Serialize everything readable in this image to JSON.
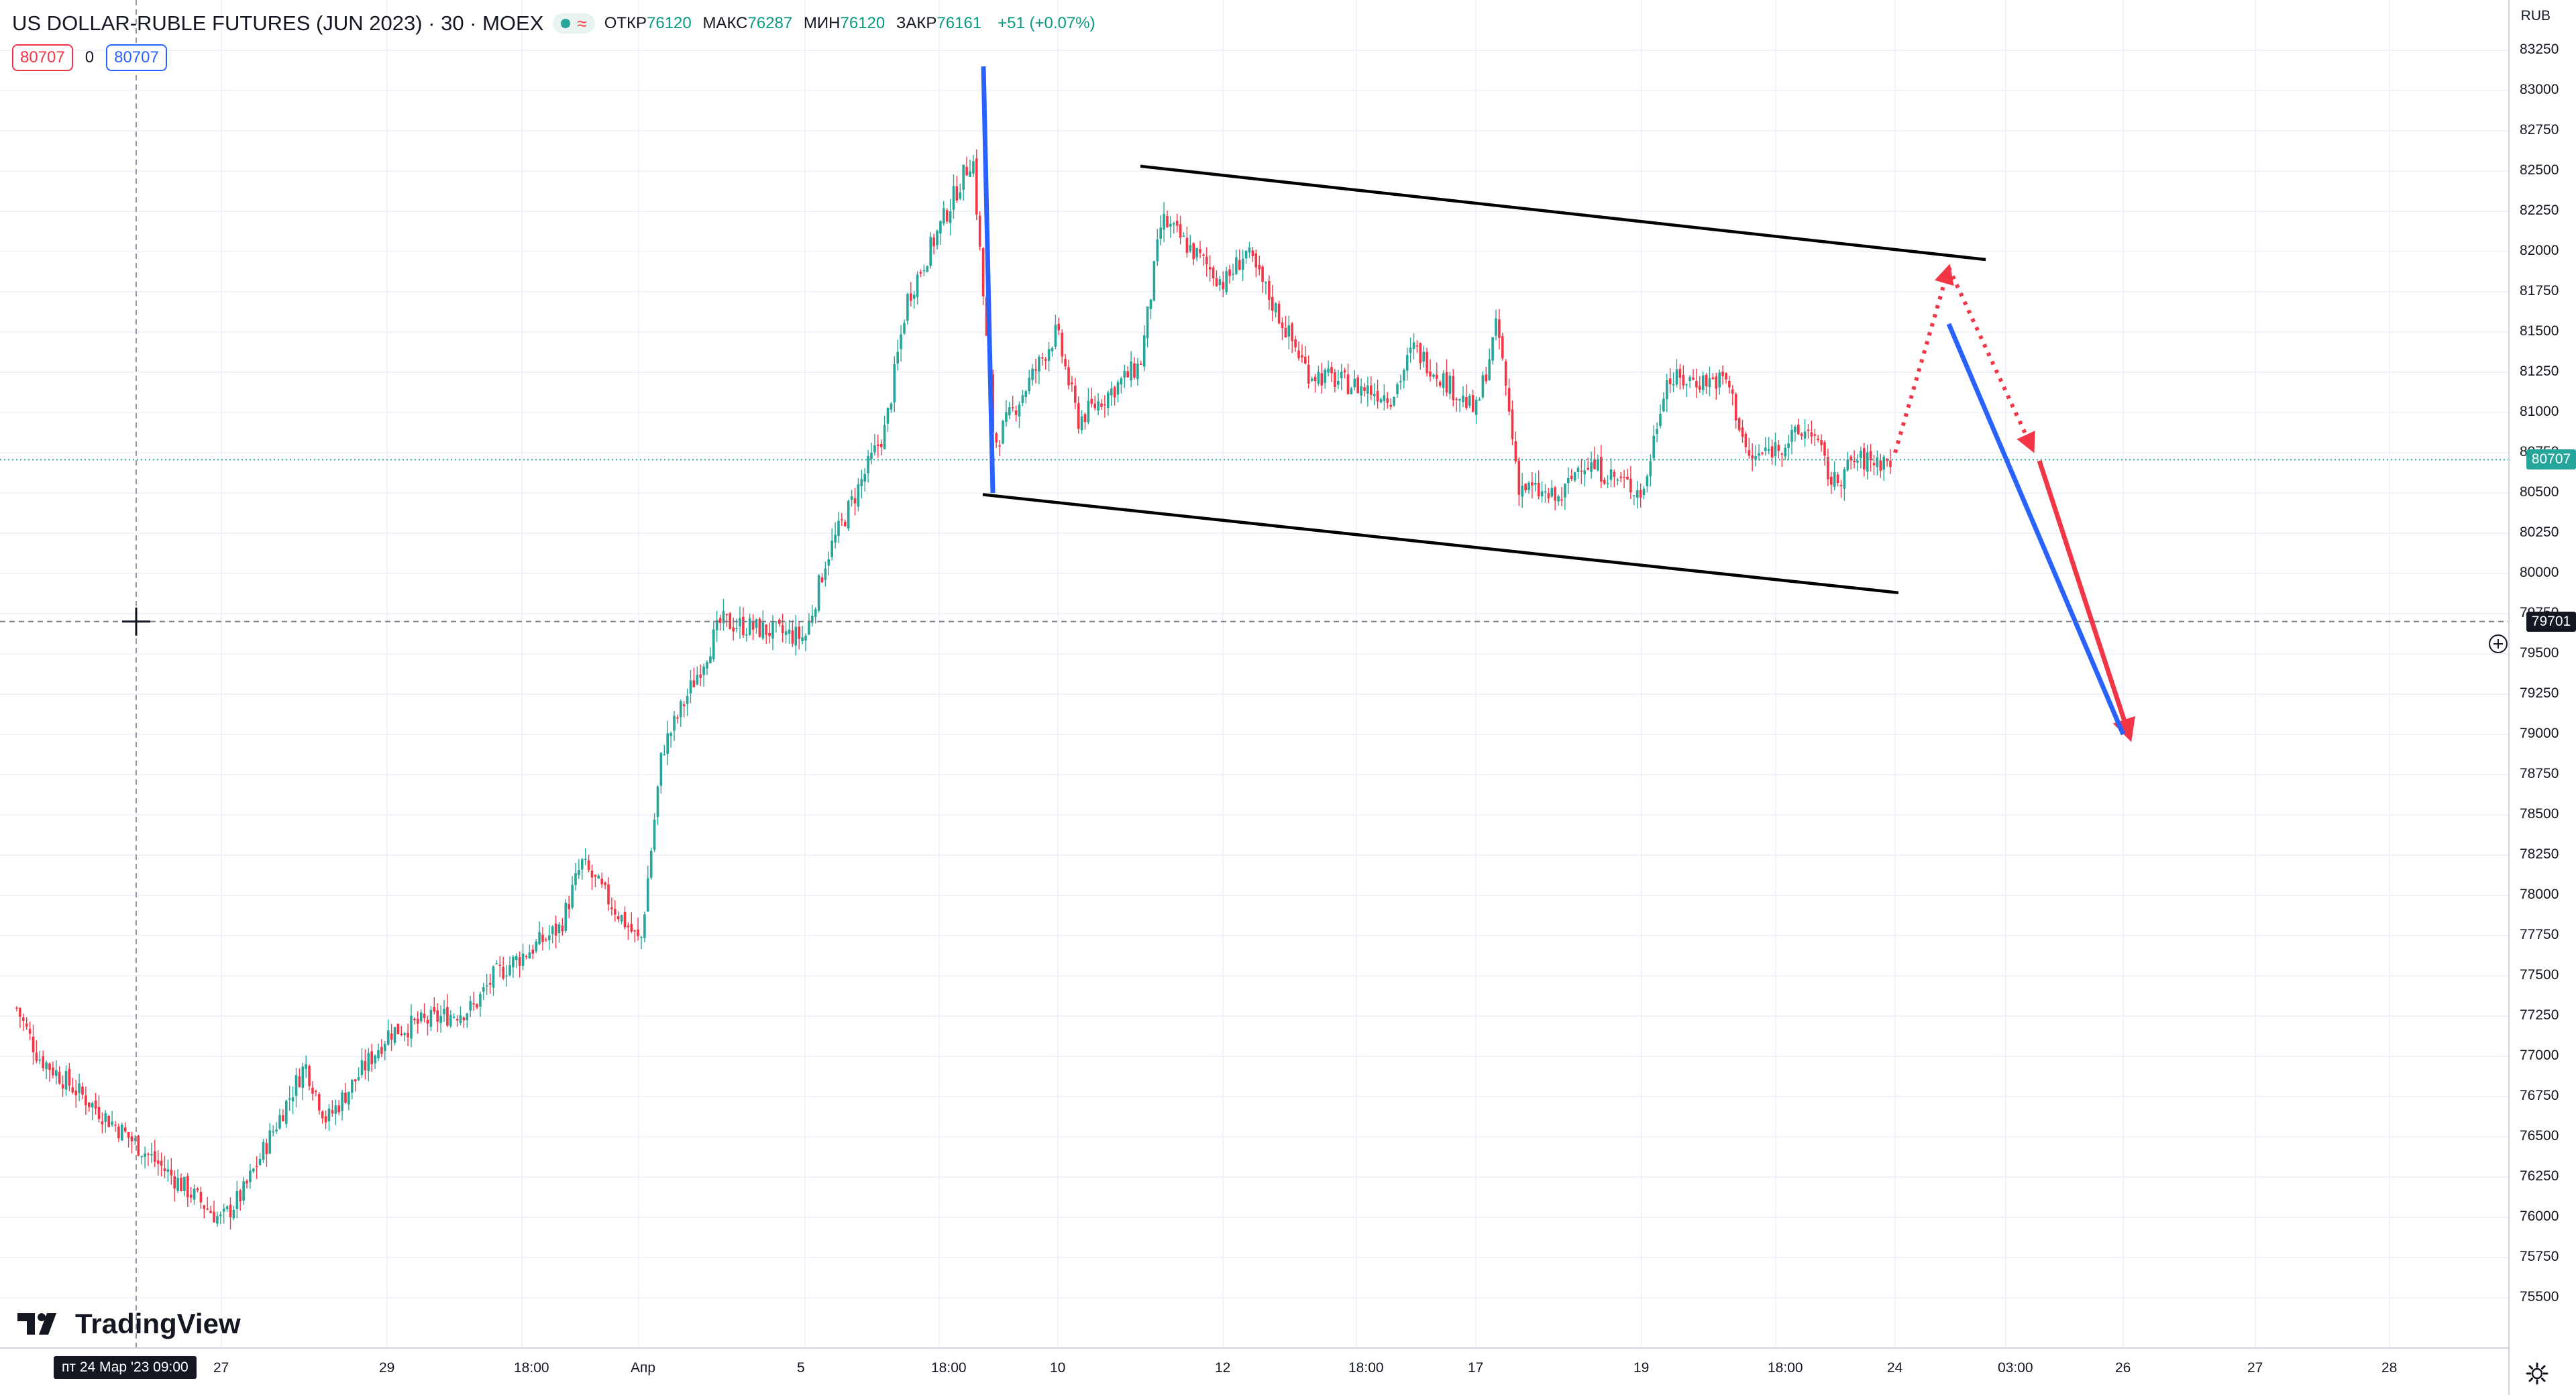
{
  "instrument": {
    "title": "US DOLLAR-RUBLE FUTURES (JUN 2023) · 30 · MOEX",
    "open_label": "ОТКР",
    "open_value": "76120",
    "high_label": "МАКС",
    "high_value": "76287",
    "low_label": "МИН",
    "low_value": "76120",
    "close_label": "ЗАКР",
    "close_value": "76161",
    "change": "+51 (+0.07%)",
    "status_icon": "market-open-dot",
    "status_wave": "≈"
  },
  "trade": {
    "sell_price": "80707",
    "spread": "0",
    "buy_price": "80707"
  },
  "price_axis": {
    "currency": "RUB",
    "ticks": [
      "83250",
      "83000",
      "82750",
      "82500",
      "82250",
      "82000",
      "81750",
      "81500",
      "81250",
      "81000",
      "80750",
      "80500",
      "80250",
      "80000",
      "79750",
      "79500",
      "79250",
      "79000",
      "78750",
      "78500",
      "78250",
      "78000",
      "77750",
      "77500",
      "77250",
      "77000",
      "76750",
      "76500",
      "76250",
      "76000",
      "75750",
      "75500"
    ],
    "last_price_label": "80707",
    "crosshair_price_label": "79701"
  },
  "time_axis": {
    "ticks": [
      "27",
      "29",
      "18:00",
      "Апр",
      "5",
      "18:00",
      "10",
      "12",
      "18:00",
      "17",
      "19",
      "18:00",
      "24",
      "03:00",
      "26",
      "27",
      "28"
    ],
    "crosshair_time_label": "пт 24 Мар '23   09:00"
  },
  "brand": {
    "name": "TradingView"
  },
  "colors": {
    "up": "#26a69a",
    "down": "#f23645",
    "channel": "#000000",
    "blue_line": "#2962ff",
    "red_line": "#f23645",
    "last_price_line": "#26a69a"
  },
  "chart_data": {
    "type": "candlestick",
    "price_range": [
      75500,
      83250
    ],
    "trend_channel": {
      "upper": [
        {
          "date": "Apr 11",
          "price": 82530
        },
        {
          "date": "Apr 24",
          "price": 81950
        }
      ],
      "lower": [
        {
          "date": "Apr 7",
          "price": 80490
        },
        {
          "date": "Apr 24",
          "price": 79880
        }
      ]
    },
    "close_path": [
      {
        "date": "Mar 24",
        "price": 77300
      },
      {
        "date": "Mar 24",
        "price": 77000
      },
      {
        "date": "Mar 27",
        "price": 75980
      },
      {
        "date": "Mar 27",
        "price": 76150
      },
      {
        "date": "Mar 28",
        "price": 76950
      },
      {
        "date": "Mar 28",
        "price": 76600
      },
      {
        "date": "Mar 29",
        "price": 77150
      },
      {
        "date": "Mar 30",
        "price": 77300
      },
      {
        "date": "Mar 30",
        "price": 77500
      },
      {
        "date": "Mar 31",
        "price": 77800
      },
      {
        "date": "Mar 31",
        "price": 78200
      },
      {
        "date": "Apr 3",
        "price": 77700
      },
      {
        "date": "Apr 3",
        "price": 78900
      },
      {
        "date": "Apr 4",
        "price": 79700
      },
      {
        "date": "Apr 5",
        "price": 79600
      },
      {
        "date": "Apr 5",
        "price": 80100
      },
      {
        "date": "Apr 6",
        "price": 80900
      },
      {
        "date": "Apr 6",
        "price": 81700
      },
      {
        "date": "Apr 7",
        "price": 82600
      },
      {
        "date": "Apr 7",
        "price": 80800
      },
      {
        "date": "Apr 10",
        "price": 81500
      },
      {
        "date": "Apr 10",
        "price": 80950
      },
      {
        "date": "Apr 11",
        "price": 81300
      },
      {
        "date": "Apr 11",
        "price": 82200
      },
      {
        "date": "Apr 12",
        "price": 81800
      },
      {
        "date": "Apr 12",
        "price": 82000
      },
      {
        "date": "Apr 13",
        "price": 81250
      },
      {
        "date": "Apr 14",
        "price": 81100
      },
      {
        "date": "Apr 14",
        "price": 81400
      },
      {
        "date": "Apr 17",
        "price": 81000
      },
      {
        "date": "Apr 17",
        "price": 81550
      },
      {
        "date": "Apr 17",
        "price": 80550
      },
      {
        "date": "Apr 18",
        "price": 80450
      },
      {
        "date": "Apr 18",
        "price": 80700
      },
      {
        "date": "Apr 19",
        "price": 80500
      },
      {
        "date": "Apr 19",
        "price": 81200
      },
      {
        "date": "Apr 20",
        "price": 81200
      },
      {
        "date": "Apr 20",
        "price": 80700
      },
      {
        "date": "Apr 21",
        "price": 80900
      },
      {
        "date": "Apr 21",
        "price": 80550
      },
      {
        "date": "Apr 21",
        "price": 80700
      }
    ],
    "projections": [
      {
        "kind": "dotted-red-arrow",
        "from": {
          "date": "Apr 24",
          "price": 80750
        },
        "to": {
          "date": "Apr 25 00:00",
          "price": 81900
        }
      },
      {
        "kind": "dotted-red-arrow",
        "from": {
          "date": "Apr 25 00:00",
          "price": 81900
        },
        "to": {
          "date": "Apr 25 03:00",
          "price": 80770
        }
      },
      {
        "kind": "red-arrow",
        "from": {
          "date": "Apr 25 03:00",
          "price": 80700
        },
        "to": {
          "date": "Apr 26",
          "price": 78980
        }
      },
      {
        "kind": "blue-line",
        "from": {
          "date": "Apr 25 00:00",
          "price": 81550
        },
        "to": {
          "date": "Apr 26",
          "price": 79000
        }
      },
      {
        "kind": "blue-line",
        "from": {
          "date": "Apr 7",
          "price": 83150
        },
        "to": {
          "date": "Apr 7",
          "price": 80500
        }
      }
    ]
  }
}
